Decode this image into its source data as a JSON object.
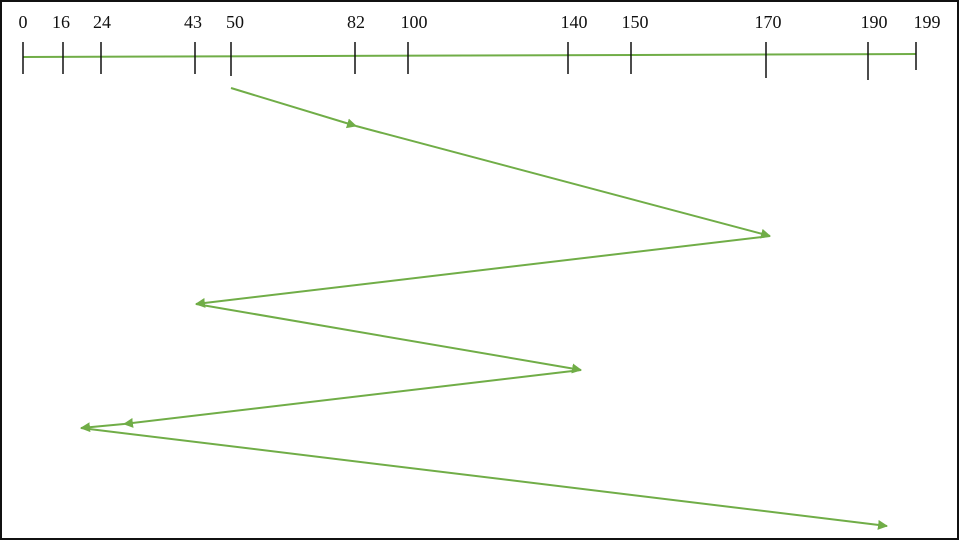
{
  "ticks": [
    "0",
    "16",
    "24",
    "43",
    "50",
    "82",
    "100",
    "140",
    "150",
    "170",
    "190",
    "199"
  ],
  "diagram": {
    "axis_min": 0,
    "axis_max": 199,
    "track_sequence": [
      50,
      82,
      170,
      43,
      140,
      24,
      16,
      190
    ],
    "colors": {
      "line": "#70ad47",
      "axis": "#111111",
      "border": "#111111"
    }
  }
}
